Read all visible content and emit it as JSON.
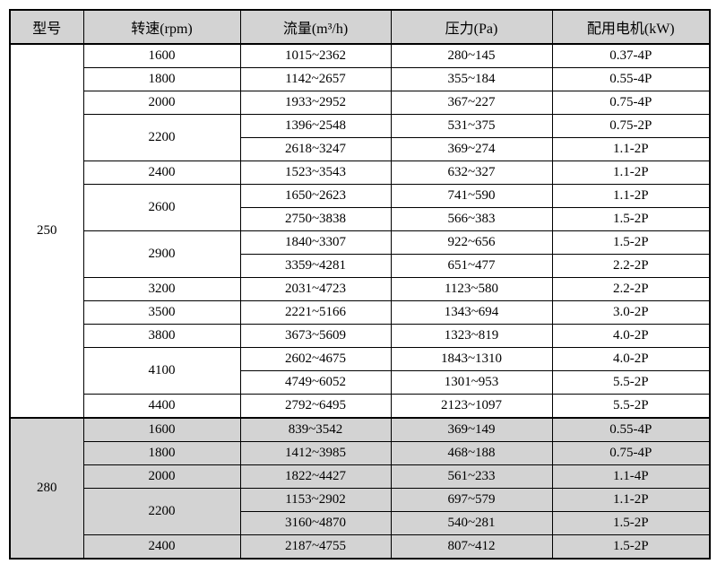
{
  "table": {
    "columns": [
      "型号",
      "转速(rpm)",
      "流量(m³/h)",
      "压力(Pa)",
      "配用电机(kW)"
    ],
    "sections": [
      {
        "model": "250",
        "groups": [
          {
            "speed": "1600",
            "entries": [
              {
                "flow": "1015~2362",
                "pressure": "280~145",
                "motor": "0.37-4P"
              }
            ]
          },
          {
            "speed": "1800",
            "entries": [
              {
                "flow": "1142~2657",
                "pressure": "355~184",
                "motor": "0.55-4P"
              }
            ]
          },
          {
            "speed": "2000",
            "entries": [
              {
                "flow": "1933~2952",
                "pressure": "367~227",
                "motor": "0.75-4P"
              }
            ]
          },
          {
            "speed": "2200",
            "entries": [
              {
                "flow": "1396~2548",
                "pressure": "531~375",
                "motor": "0.75-2P"
              },
              {
                "flow": "2618~3247",
                "pressure": "369~274",
                "motor": "1.1-2P"
              }
            ]
          },
          {
            "speed": "2400",
            "entries": [
              {
                "flow": "1523~3543",
                "pressure": "632~327",
                "motor": "1.1-2P"
              }
            ]
          },
          {
            "speed": "2600",
            "entries": [
              {
                "flow": "1650~2623",
                "pressure": "741~590",
                "motor": "1.1-2P"
              },
              {
                "flow": "2750~3838",
                "pressure": "566~383",
                "motor": "1.5-2P"
              }
            ]
          },
          {
            "speed": "2900",
            "entries": [
              {
                "flow": "1840~3307",
                "pressure": "922~656",
                "motor": "1.5-2P"
              },
              {
                "flow": "3359~4281",
                "pressure": "651~477",
                "motor": "2.2-2P"
              }
            ]
          },
          {
            "speed": "3200",
            "entries": [
              {
                "flow": "2031~4723",
                "pressure": "1123~580",
                "motor": "2.2-2P"
              }
            ]
          },
          {
            "speed": "3500",
            "entries": [
              {
                "flow": "2221~5166",
                "pressure": "1343~694",
                "motor": "3.0-2P"
              }
            ]
          },
          {
            "speed": "3800",
            "entries": [
              {
                "flow": "3673~5609",
                "pressure": "1323~819",
                "motor": "4.0-2P"
              }
            ]
          },
          {
            "speed": "4100",
            "entries": [
              {
                "flow": "2602~4675",
                "pressure": "1843~1310",
                "motor": "4.0-2P"
              },
              {
                "flow": "4749~6052",
                "pressure": "1301~953",
                "motor": "5.5-2P"
              }
            ]
          },
          {
            "speed": "4400",
            "entries": [
              {
                "flow": "2792~6495",
                "pressure": "2123~1097",
                "motor": "5.5-2P"
              }
            ]
          }
        ]
      },
      {
        "model": "280",
        "groups": [
          {
            "speed": "1600",
            "entries": [
              {
                "flow": "839~3542",
                "pressure": "369~149",
                "motor": "0.55-4P"
              }
            ]
          },
          {
            "speed": "1800",
            "entries": [
              {
                "flow": "1412~3985",
                "pressure": "468~188",
                "motor": "0.75-4P"
              }
            ]
          },
          {
            "speed": "2000",
            "entries": [
              {
                "flow": "1822~4427",
                "pressure": "561~233",
                "motor": "1.1-4P"
              }
            ]
          },
          {
            "speed": "2200",
            "entries": [
              {
                "flow": "1153~2902",
                "pressure": "697~579",
                "motor": "1.1-2P"
              },
              {
                "flow": "3160~4870",
                "pressure": "540~281",
                "motor": "1.5-2P"
              }
            ]
          },
          {
            "speed": "2400",
            "entries": [
              {
                "flow": "2187~4755",
                "pressure": "807~412",
                "motor": "1.5-2P"
              }
            ]
          }
        ]
      }
    ],
    "colors": {
      "header_bg": "#d3d3d3",
      "section_280_bg": "#d3d3d3",
      "border": "#000000",
      "text": "#000000",
      "page_bg": "#ffffff"
    }
  }
}
